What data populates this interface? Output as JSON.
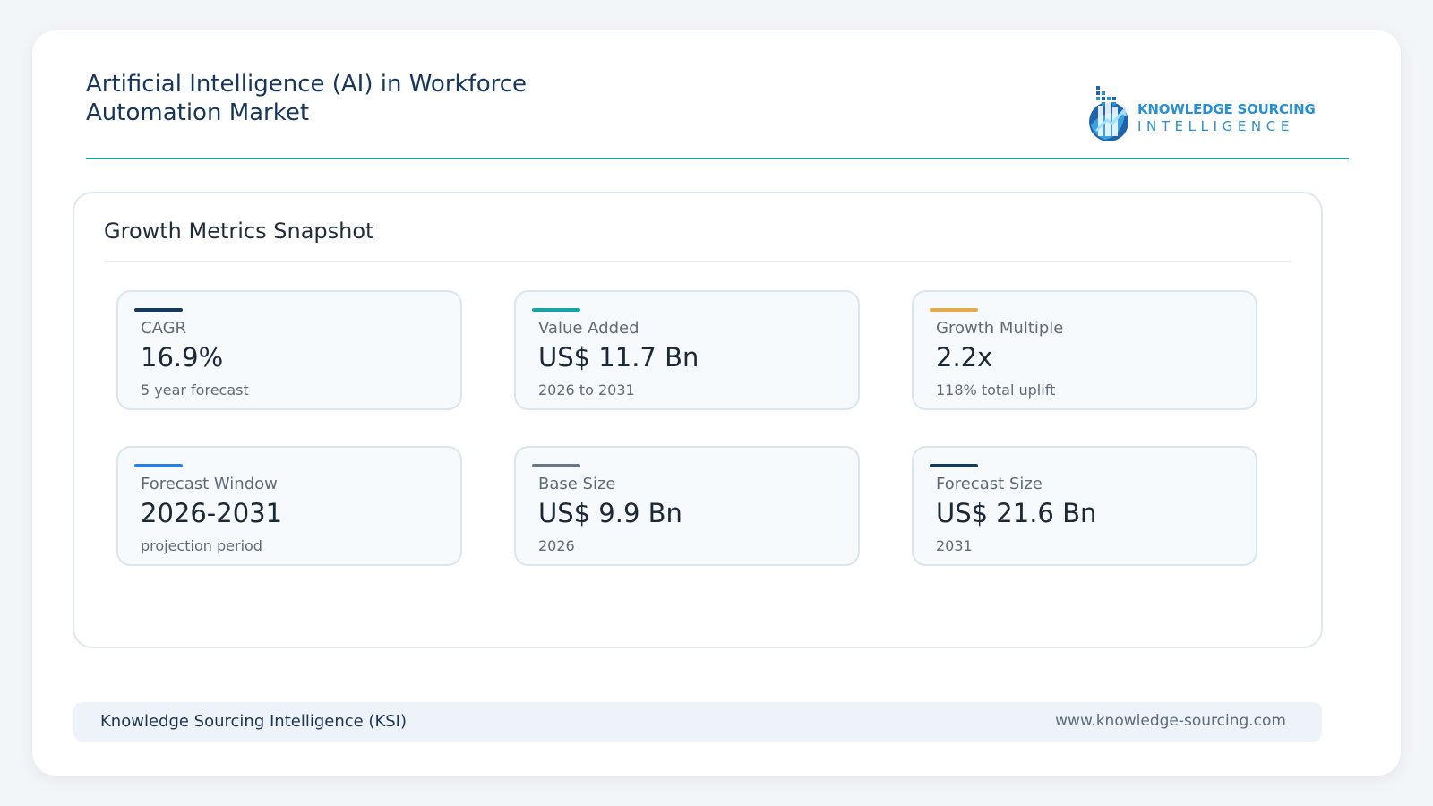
{
  "header": {
    "title": "Artificial Intelligence (AI) in Workforce Automation Market",
    "logo": {
      "line1": "KNOWLEDGE SOURCING",
      "line2": "INTELLIGENCE",
      "icon": "building-chart-globe-icon",
      "color": "#2a8fd0"
    },
    "accent_color": "#1a9c9c"
  },
  "panel": {
    "title": "Growth Metrics Snapshot",
    "metrics": [
      {
        "label": "CAGR",
        "value": "16.9%",
        "sub": "5 year forecast",
        "color": "#163a5c"
      },
      {
        "label": "Value Added",
        "value": "US$ 11.7 Bn",
        "sub": "2026 to 2031",
        "color": "#1aa3a3"
      },
      {
        "label": "Growth Multiple",
        "value": "2.2x",
        "sub": "118% total uplift",
        "color": "#e5a84a"
      },
      {
        "label": "Forecast Window",
        "value": "2026-2031",
        "sub": "projection period",
        "color": "#2f7fd9"
      },
      {
        "label": "Base Size",
        "value": "US$ 9.9 Bn",
        "sub": "2026",
        "color": "#6b7683"
      },
      {
        "label": "Forecast Size",
        "value": "US$ 21.6 Bn",
        "sub": "2031",
        "color": "#163a5c"
      }
    ]
  },
  "footer": {
    "left": "Knowledge Sourcing Intelligence (KSI)",
    "right": "www.knowledge-sourcing.com"
  }
}
